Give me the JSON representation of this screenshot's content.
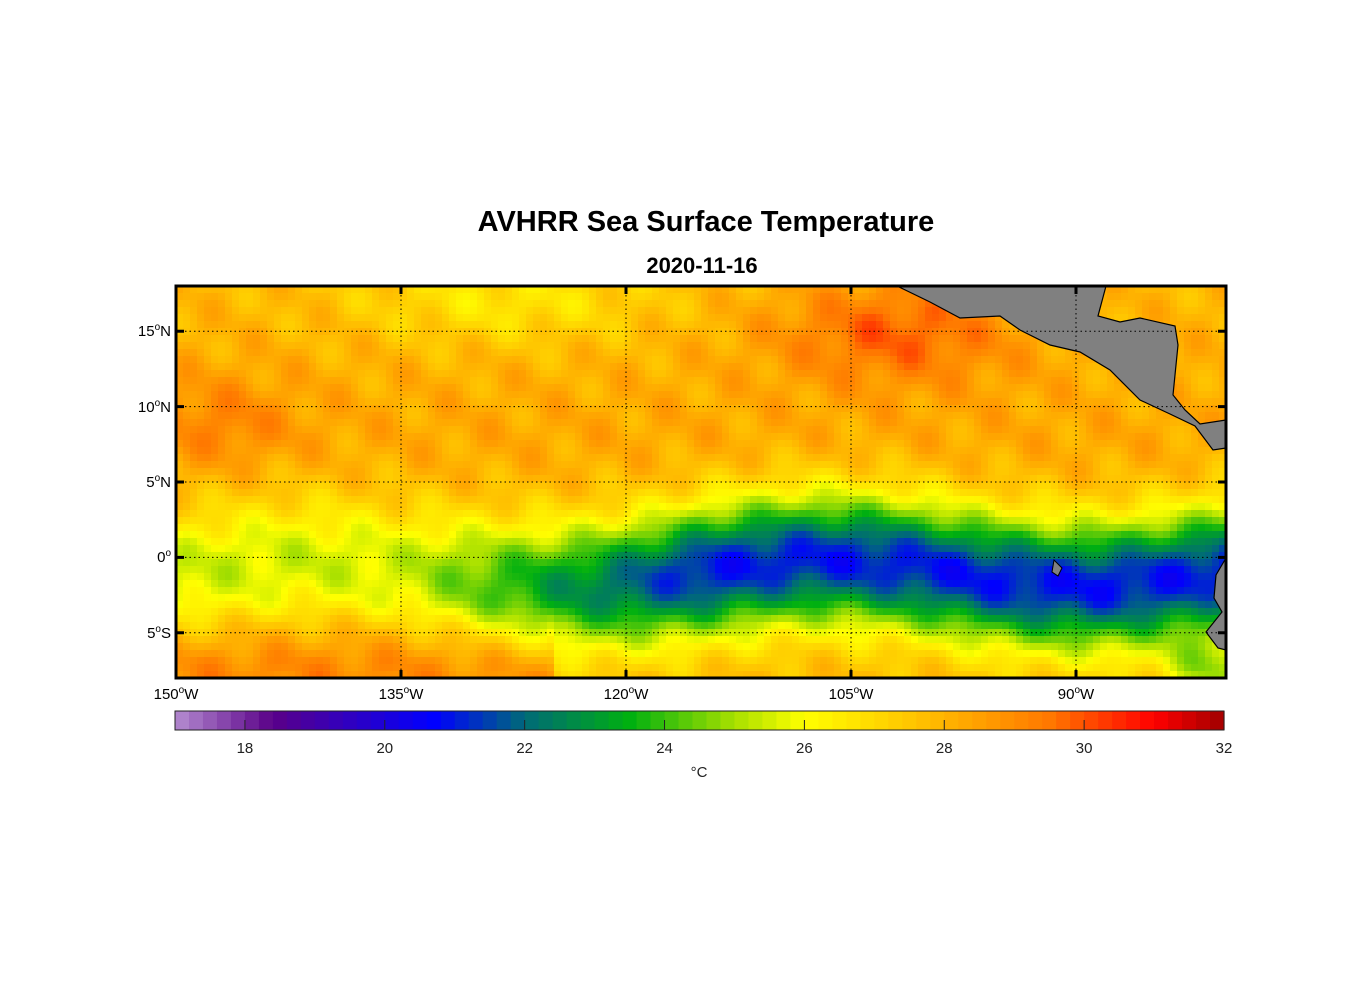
{
  "chart_data": {
    "type": "heatmap",
    "title": "AVHRR Sea Surface Temperature",
    "subtitle": "2020-11-16",
    "x_range": [
      -150,
      -80
    ],
    "y_range": [
      -8,
      18
    ],
    "x_ticks": [
      {
        "value": -150,
        "label": "150",
        "suffix": "W"
      },
      {
        "value": -135,
        "label": "135",
        "suffix": "W"
      },
      {
        "value": -120,
        "label": "120",
        "suffix": "W"
      },
      {
        "value": -105,
        "label": "105",
        "suffix": "W"
      },
      {
        "value": -90,
        "label": "90",
        "suffix": "W"
      }
    ],
    "y_ticks": [
      {
        "value": 15,
        "label": "15",
        "suffix": "N"
      },
      {
        "value": 10,
        "label": "10",
        "suffix": "N"
      },
      {
        "value": 5,
        "label": "5",
        "suffix": "N"
      },
      {
        "value": 0,
        "label": "0",
        "suffix": ""
      },
      {
        "value": -5,
        "label": "5",
        "suffix": "S"
      }
    ],
    "grid": true,
    "colorbar": {
      "range": [
        17,
        32
      ],
      "ticks": [
        "18",
        "20",
        "22",
        "24",
        "26",
        "28",
        "30",
        "32"
      ],
      "tick_values": [
        18,
        20,
        22,
        24,
        26,
        28,
        30,
        32
      ],
      "unit": "°C",
      "stops": [
        [
          17,
          "#b48cd0"
        ],
        [
          18.4,
          "#5a0088"
        ],
        [
          20.7,
          "#0000ff"
        ],
        [
          22,
          "#006a78"
        ],
        [
          23.5,
          "#00b010"
        ],
        [
          25,
          "#a8e000"
        ],
        [
          26,
          "#ffff00"
        ],
        [
          28,
          "#ffb400"
        ],
        [
          29.5,
          "#ff7800"
        ],
        [
          31,
          "#ff0000"
        ],
        [
          32,
          "#a00000"
        ]
      ]
    },
    "land_color": "#808080",
    "description_fields": {
      "tongue": "cold equatorial tongue ~21-23 °C east of 125W; 28-30 °C north of 5N"
    }
  }
}
